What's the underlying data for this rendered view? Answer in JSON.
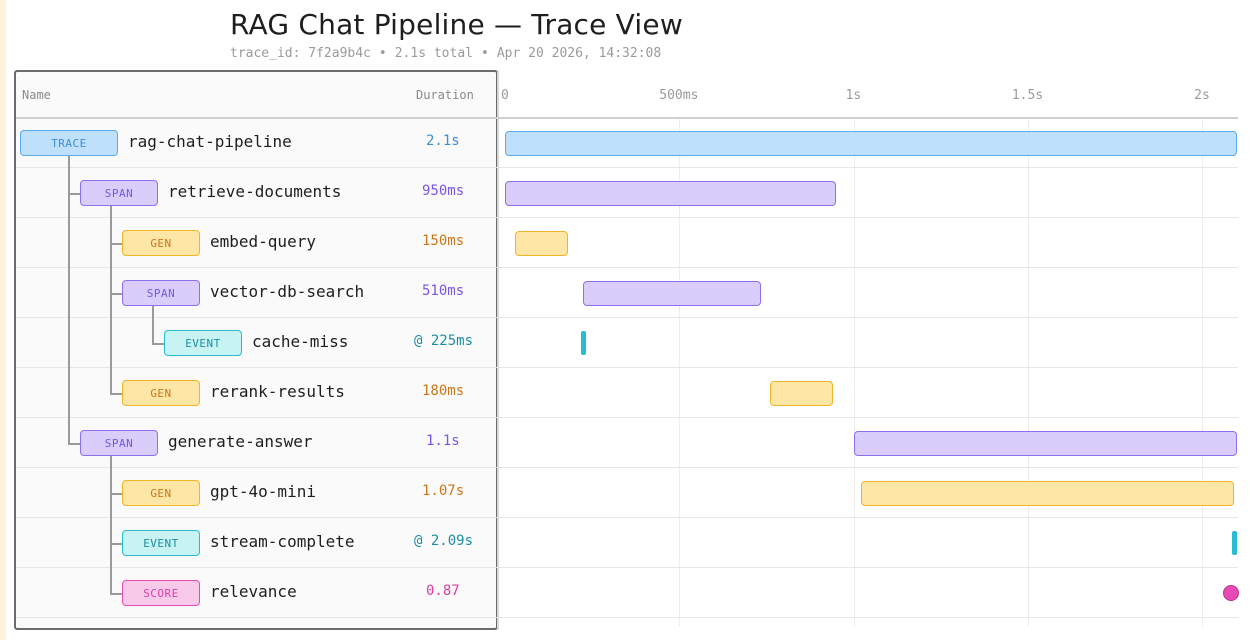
{
  "header": {
    "title": "RAG Chat Pipeline — Trace View",
    "trace_id": "trace_id: 7f2a9b4c",
    "total": "2.1s total",
    "timestamp": "Apr 20 2026, 14:32:08"
  },
  "columns": {
    "name": "Name",
    "duration": "Duration"
  },
  "axis": {
    "unit_max_ms": 2100,
    "ticks": [
      {
        "label": "0",
        "ms": 0
      },
      {
        "label": "500ms",
        "ms": 500
      },
      {
        "label": "1s",
        "ms": 1000
      },
      {
        "label": "1.5s",
        "ms": 1500
      },
      {
        "label": "2s",
        "ms": 2000
      }
    ]
  },
  "colors": {
    "trace": {
      "fill": "#bfe0fb",
      "border": "#5aa9ee",
      "text": "#3b8fd8"
    },
    "span": {
      "fill": "#d9cdfb",
      "border": "#8f6ef0",
      "text": "#7b55e6"
    },
    "gen": {
      "fill": "#fde6a6",
      "border": "#f0b429",
      "text": "#c8781a"
    },
    "event": {
      "fill": "#c8f3f3",
      "border": "#28bcd0",
      "text": "#1a8fa2"
    },
    "score": {
      "fill": "#f9c9ea",
      "border": "#e54bb4",
      "text": "#d83fa6"
    }
  },
  "rows": [
    {
      "kind": "trace",
      "badge": "TRACE",
      "name": "rag-chat-pipeline",
      "duration": "2.1s",
      "start_ms": 0,
      "dur_ms": 2100
    },
    {
      "kind": "span",
      "badge": "SPAN",
      "name": "retrieve-documents",
      "duration": "950ms",
      "start_ms": 0,
      "dur_ms": 950
    },
    {
      "kind": "gen",
      "badge": "GEN",
      "name": "embed-query",
      "duration": "150ms",
      "start_ms": 30,
      "dur_ms": 150
    },
    {
      "kind": "span",
      "badge": "SPAN",
      "name": "vector-db-search",
      "duration": "510ms",
      "start_ms": 225,
      "dur_ms": 510
    },
    {
      "kind": "event",
      "badge": "EVENT",
      "name": "cache-miss",
      "duration": "@ 225ms",
      "start_ms": 225,
      "dur_ms": 0
    },
    {
      "kind": "gen",
      "badge": "GEN",
      "name": "rerank-results",
      "duration": "180ms",
      "start_ms": 760,
      "dur_ms": 180
    },
    {
      "kind": "span",
      "badge": "SPAN",
      "name": "generate-answer",
      "duration": "1.1s",
      "start_ms": 1000,
      "dur_ms": 1100
    },
    {
      "kind": "gen",
      "badge": "GEN",
      "name": "gpt-4o-mini",
      "duration": "1.07s",
      "start_ms": 1020,
      "dur_ms": 1070
    },
    {
      "kind": "event",
      "badge": "EVENT",
      "name": "stream-complete",
      "duration": "@ 2.09s",
      "start_ms": 2090,
      "dur_ms": 0
    },
    {
      "kind": "score",
      "badge": "SCORE",
      "name": "relevance",
      "duration": "0.87",
      "start_ms": 2100,
      "dur_ms": 0
    }
  ]
}
